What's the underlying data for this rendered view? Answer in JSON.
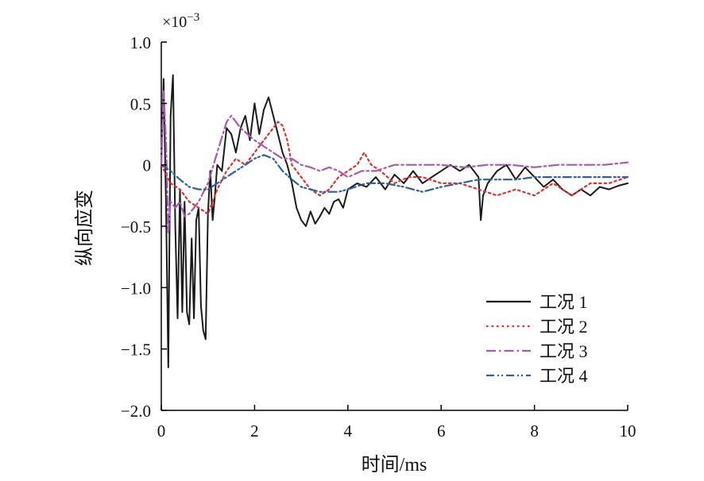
{
  "chart_data": {
    "type": "line",
    "title": "",
    "xlabel": "时间/ms",
    "ylabel": "纵向应变",
    "y_multiplier": "×10",
    "y_multiplier_exp": "−3",
    "xlim": [
      0,
      10
    ],
    "ylim": [
      -2.0,
      1.0
    ],
    "x_ticks": [
      0,
      2,
      4,
      6,
      8,
      10
    ],
    "x_tick_labels": [
      "0",
      "2",
      "4",
      "6",
      "8",
      "10"
    ],
    "y_ticks": [
      1.0,
      0.5,
      0,
      -0.5,
      -1.0,
      -1.5,
      -2.0
    ],
    "y_tick_labels": [
      "1.0",
      "0.5",
      "0",
      "−0.5",
      "−1.0",
      "−1.5",
      "−2.0"
    ],
    "grid": false,
    "legend_position": "lower-right",
    "series": [
      {
        "name": "工况 1",
        "color": "#1a1a1a",
        "dash": "solid",
        "x": [
          0,
          0.05,
          0.1,
          0.15,
          0.2,
          0.25,
          0.3,
          0.35,
          0.4,
          0.45,
          0.5,
          0.55,
          0.6,
          0.65,
          0.7,
          0.75,
          0.8,
          0.85,
          0.9,
          0.95,
          1.0,
          1.05,
          1.1,
          1.15,
          1.2,
          1.3,
          1.4,
          1.5,
          1.6,
          1.7,
          1.8,
          1.9,
          2.0,
          2.1,
          2.2,
          2.3,
          2.4,
          2.5,
          2.6,
          2.7,
          2.8,
          2.9,
          3.0,
          3.1,
          3.2,
          3.3,
          3.4,
          3.5,
          3.6,
          3.7,
          3.8,
          3.9,
          4.0,
          4.2,
          4.4,
          4.6,
          4.8,
          5.0,
          5.2,
          5.4,
          5.6,
          5.8,
          6.0,
          6.2,
          6.4,
          6.6,
          6.8,
          6.85,
          6.9,
          7.0,
          7.2,
          7.4,
          7.6,
          7.8,
          8.0,
          8.2,
          8.4,
          8.6,
          8.8,
          9.0,
          9.2,
          9.4,
          9.6,
          9.8,
          10.0
        ],
        "y": [
          0,
          0.7,
          -0.3,
          -1.65,
          0.4,
          0.73,
          -0.5,
          -1.25,
          -0.2,
          -1.2,
          -0.3,
          -1.2,
          -1.3,
          -0.6,
          -1.25,
          -0.45,
          -0.35,
          -1.15,
          -1.35,
          -1.42,
          -0.4,
          -0.05,
          -0.45,
          -0.25,
          0.0,
          -0.05,
          0.3,
          0.25,
          0.1,
          0.3,
          0.4,
          0.2,
          0.5,
          0.25,
          0.45,
          0.55,
          0.4,
          0.25,
          0.1,
          0.0,
          -0.15,
          -0.35,
          -0.45,
          -0.5,
          -0.38,
          -0.48,
          -0.42,
          -0.35,
          -0.4,
          -0.3,
          -0.28,
          -0.35,
          -0.2,
          -0.15,
          -0.18,
          -0.1,
          -0.2,
          -0.08,
          -0.15,
          -0.05,
          -0.15,
          -0.1,
          -0.05,
          0.0,
          -0.05,
          0.0,
          -0.1,
          -0.45,
          -0.25,
          -0.15,
          -0.05,
          0.0,
          -0.12,
          -0.02,
          -0.1,
          -0.18,
          -0.12,
          -0.2,
          -0.25,
          -0.2,
          -0.25,
          -0.18,
          -0.2,
          -0.17,
          -0.15
        ]
      },
      {
        "name": "工况 2",
        "color": "#e0302a",
        "dash": "dot",
        "x": [
          0,
          0.2,
          0.4,
          0.6,
          0.8,
          1.0,
          1.2,
          1.4,
          1.6,
          1.8,
          2.0,
          2.2,
          2.4,
          2.5,
          2.6,
          2.7,
          2.8,
          3.0,
          3.2,
          3.4,
          3.6,
          3.8,
          4.0,
          4.2,
          4.35,
          4.5,
          4.7,
          5.0,
          5.3,
          5.6,
          6.0,
          6.4,
          6.8,
          7.2,
          7.6,
          8.0,
          8.4,
          8.8,
          9.2,
          9.6,
          10.0
        ],
        "y": [
          0,
          -0.15,
          -0.2,
          -0.3,
          -0.35,
          -0.4,
          -0.2,
          -0.05,
          0.05,
          0.0,
          0.1,
          0.2,
          0.3,
          0.35,
          0.32,
          0.2,
          0.0,
          -0.1,
          -0.2,
          -0.25,
          -0.2,
          -0.1,
          -0.05,
          0.0,
          0.1,
          0.0,
          -0.05,
          -0.15,
          -0.1,
          -0.1,
          -0.15,
          -0.15,
          -0.2,
          -0.25,
          -0.2,
          -0.25,
          -0.15,
          -0.25,
          -0.15,
          -0.15,
          -0.1
        ]
      },
      {
        "name": "工况 3",
        "color": "#a85ab0",
        "dash": "dashdot",
        "x": [
          0,
          0.05,
          0.1,
          0.15,
          0.2,
          0.3,
          0.4,
          0.5,
          0.6,
          0.7,
          0.8,
          1.0,
          1.2,
          1.4,
          1.5,
          1.7,
          2.0,
          2.2,
          2.4,
          2.6,
          2.8,
          3.0,
          3.2,
          3.4,
          3.6,
          3.8,
          4.0,
          4.3,
          4.6,
          5.0,
          5.5,
          6.0,
          6.5,
          7.0,
          7.5,
          8.0,
          8.5,
          9.0,
          9.5,
          10.0
        ],
        "y": [
          0,
          0.6,
          0.2,
          -0.55,
          -0.3,
          -0.35,
          -0.3,
          -0.42,
          -0.4,
          -0.35,
          -0.3,
          -0.15,
          0.1,
          0.35,
          0.4,
          0.3,
          0.2,
          0.15,
          0.1,
          0.05,
          0.05,
          0.0,
          -0.02,
          -0.05,
          -0.02,
          -0.05,
          -0.1,
          -0.05,
          -0.05,
          0.0,
          0.0,
          0.0,
          -0.02,
          0.0,
          0.0,
          -0.02,
          0.0,
          0.0,
          0.0,
          0.02
        ]
      },
      {
        "name": "工况 4",
        "color": "#2f5f9e",
        "dash": "dashdotdot",
        "x": [
          0,
          0.2,
          0.4,
          0.6,
          0.8,
          1.0,
          1.2,
          1.4,
          1.6,
          1.8,
          2.0,
          2.2,
          2.4,
          2.6,
          2.8,
          3.0,
          3.2,
          3.4,
          3.6,
          3.8,
          4.0,
          4.4,
          4.8,
          5.2,
          5.6,
          6.0,
          6.4,
          6.8,
          7.2,
          7.6,
          8.0,
          8.4,
          8.8,
          9.2,
          9.6,
          10.0
        ],
        "y": [
          0,
          -0.05,
          -0.12,
          -0.18,
          -0.2,
          -0.2,
          -0.15,
          -0.1,
          -0.05,
          0.0,
          0.05,
          0.08,
          0.05,
          -0.05,
          -0.12,
          -0.18,
          -0.2,
          -0.22,
          -0.22,
          -0.22,
          -0.2,
          -0.15,
          -0.15,
          -0.18,
          -0.22,
          -0.18,
          -0.15,
          -0.12,
          -0.12,
          -0.12,
          -0.1,
          -0.1,
          -0.1,
          -0.1,
          -0.1,
          -0.1
        ]
      }
    ]
  }
}
